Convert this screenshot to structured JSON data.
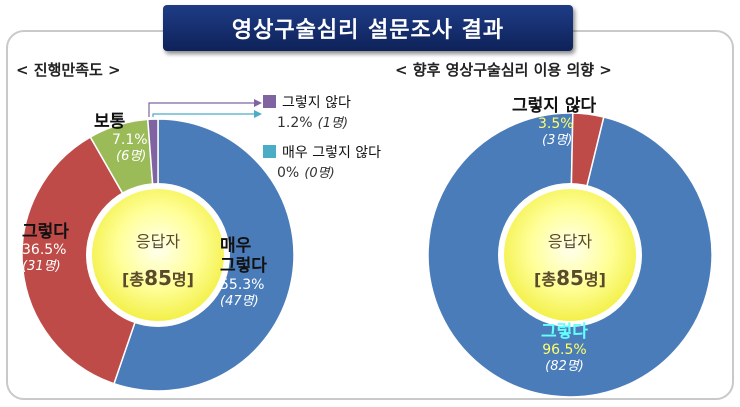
{
  "title": "영상구술심리 설문조사 결과",
  "center_label": {
    "line1": "응답자",
    "line2_prefix": "[총",
    "line2_num": "85",
    "line2_suffix": "명]"
  },
  "colors": {
    "blue": "#4a7cba",
    "red": "#be4b48",
    "green": "#9bbb59",
    "purple": "#8064a2",
    "teal": "#4bacc6",
    "yellow": "#ffff66"
  },
  "chart_data": [
    {
      "type": "pie",
      "title": "< 진행만족도 >",
      "slices": [
        {
          "label": "매우 그렇다",
          "label_line1": "매우",
          "label_line2": "그렇다",
          "value": 55.3,
          "pct_text": "55.3%",
          "count": 47,
          "count_text": "(47명)",
          "color": "#4a7cba"
        },
        {
          "label": "그렇다",
          "value": 36.5,
          "pct_text": "36.5%",
          "count": 31,
          "count_text": "(31명)",
          "color": "#be4b48"
        },
        {
          "label": "보통",
          "value": 7.1,
          "pct_text": "7.1%",
          "count": 6,
          "count_text": "(6명)",
          "color": "#9bbb59"
        },
        {
          "label": "그렇지 않다",
          "value": 1.2,
          "pct_text": "1.2%",
          "count": 1,
          "count_text": "(1명)",
          "color": "#8064a2"
        },
        {
          "label": "매우 그렇지 않다",
          "value": 0,
          "pct_text": "0%",
          "count": 0,
          "count_text": "(0명)",
          "color": "#4bacc6"
        }
      ]
    },
    {
      "type": "pie",
      "title": "< 향후 영상구술심리 이용 의향 >",
      "slices": [
        {
          "label": "그렇다",
          "value": 96.5,
          "pct_text": "96.5%",
          "count": 82,
          "count_text": "(82명)",
          "color": "#4a7cba"
        },
        {
          "label": "그렇지 않다",
          "value": 3.5,
          "pct_text": "3.5%",
          "count": 3,
          "count_text": "(3명)",
          "color": "#be4b48"
        }
      ]
    }
  ]
}
